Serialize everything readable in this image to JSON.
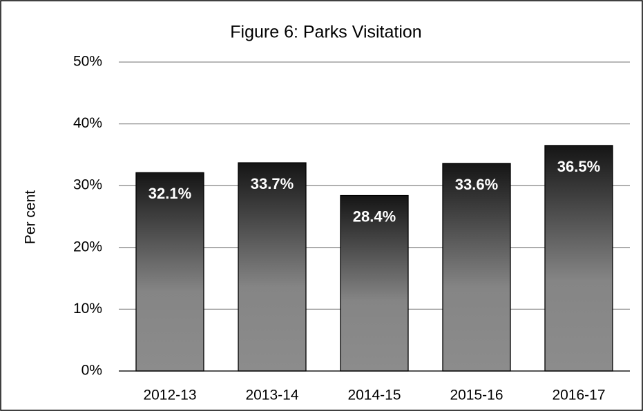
{
  "chart_data": {
    "type": "bar",
    "title": "Figure 6: Parks Visitation",
    "y_label": "Per cent",
    "categories": [
      "2012-13",
      "2013-14",
      "2014-15",
      "2015-16",
      "2016-17"
    ],
    "values": [
      32.1,
      33.7,
      28.4,
      33.6,
      36.5
    ],
    "value_labels": [
      "32.1%",
      "33.7%",
      "28.4%",
      "33.6%",
      "36.5%"
    ],
    "ylim": [
      0,
      50
    ],
    "yticks": [
      {
        "value": 0,
        "label": "0%"
      },
      {
        "value": 10,
        "label": "10%"
      },
      {
        "value": 20,
        "label": "20%"
      },
      {
        "value": 30,
        "label": "30%"
      },
      {
        "value": 40,
        "label": "40%"
      },
      {
        "value": 50,
        "label": "50%"
      }
    ],
    "grid": true
  }
}
